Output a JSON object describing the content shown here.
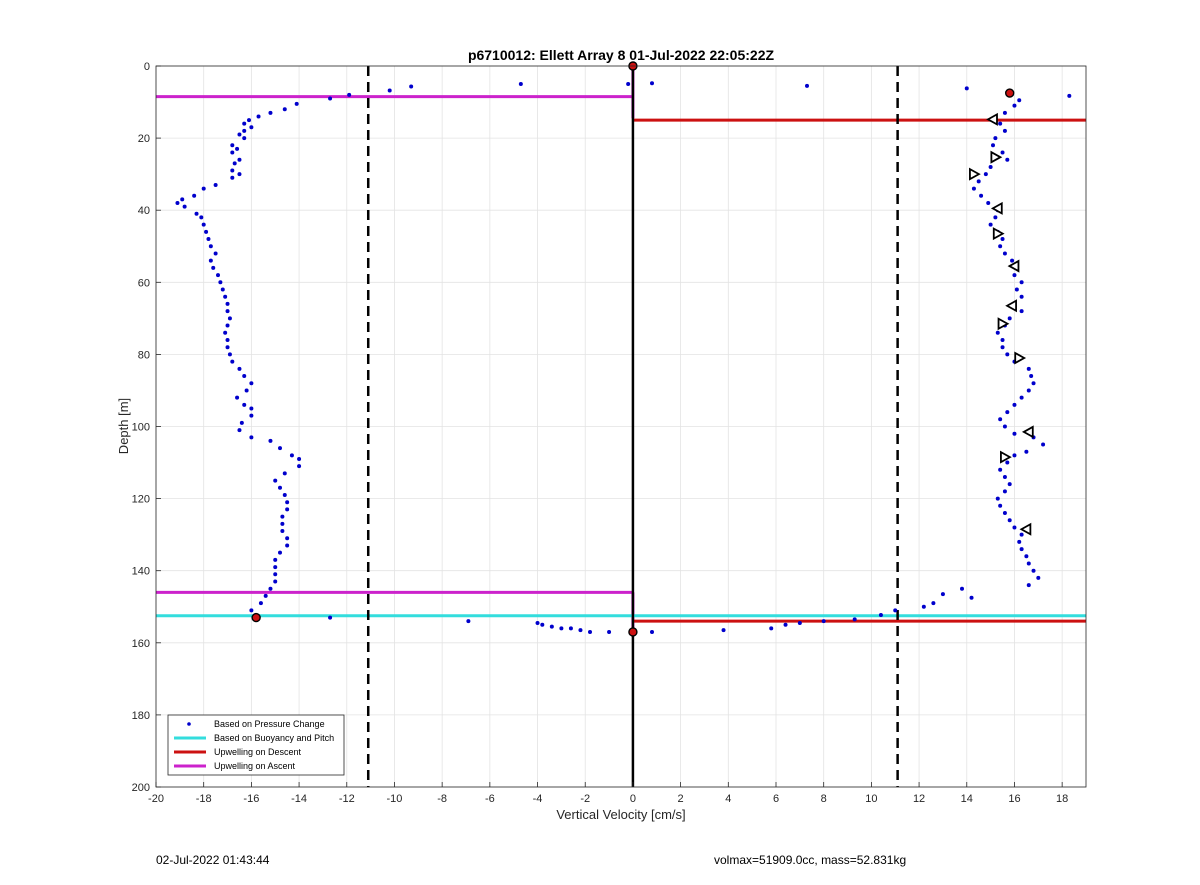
{
  "chart_data": {
    "type": "scatter",
    "title": "p6710012: Ellett Array 8 01-Jul-2022 22:05:22Z",
    "xlabel": "Vertical Velocity [cm/s]",
    "ylabel": "Depth [m]",
    "xlim": [
      -20,
      19
    ],
    "ylim": [
      0,
      200
    ],
    "y_reversed": true,
    "grid": true,
    "xticks": [
      -20,
      -18,
      -16,
      -14,
      -12,
      -10,
      -8,
      -6,
      -4,
      -2,
      0,
      2,
      4,
      6,
      8,
      10,
      12,
      14,
      16,
      18
    ],
    "yticks": [
      0,
      20,
      40,
      60,
      80,
      100,
      120,
      140,
      160,
      180,
      200
    ],
    "legend_position": "bottom-left",
    "legend": [
      {
        "label": "Based on Pressure Change",
        "color": "#0000cc",
        "marker": "dot"
      },
      {
        "label": "Based on Buoyancy and Pitch",
        "color": "#33dddd",
        "marker": "line"
      },
      {
        "label": "Upwelling on Descent",
        "color": "#cc1111",
        "marker": "line"
      },
      {
        "label": "Upwelling on Ascent",
        "color": "#cc22cc",
        "marker": "line"
      }
    ],
    "vertical_lines": [
      {
        "x": -11.1,
        "style": "dashed",
        "color": "#000000"
      },
      {
        "x": 11.1,
        "style": "dashed",
        "color": "#000000"
      },
      {
        "x": 0,
        "style": "solid",
        "color": "#000000"
      }
    ],
    "upwelling_ascent_segments": [
      {
        "x": [
          -20,
          0
        ],
        "y": 8.5
      },
      {
        "x": [
          -20,
          0
        ],
        "y": 146
      },
      {
        "x": [
          0,
          0
        ],
        "y_range": [
          0,
          14.5
        ]
      },
      {
        "x": [
          0,
          0
        ],
        "y_range": [
          146,
          156.5
        ]
      }
    ],
    "upwelling_descent_segments": [
      {
        "x": [
          0,
          19
        ],
        "y": 15
      },
      {
        "x": [
          0,
          19
        ],
        "y": 154
      }
    ],
    "buoyancy_pitch_segments": [
      {
        "x": [
          -20,
          19
        ],
        "y": 152.5
      }
    ],
    "series": [
      {
        "name": "Based on Pressure Change",
        "points": [
          [
            -15.8,
            153
          ],
          [
            -16.0,
            151
          ],
          [
            -15.6,
            149
          ],
          [
            -15.4,
            147
          ],
          [
            -15.2,
            145
          ],
          [
            -15.0,
            143
          ],
          [
            -15.0,
            141
          ],
          [
            -15.0,
            139
          ],
          [
            -15.0,
            137
          ],
          [
            -14.8,
            135
          ],
          [
            -14.5,
            133
          ],
          [
            -14.5,
            131
          ],
          [
            -14.7,
            129
          ],
          [
            -14.7,
            127
          ],
          [
            -14.7,
            125
          ],
          [
            -14.5,
            123
          ],
          [
            -14.5,
            121
          ],
          [
            -14.6,
            119
          ],
          [
            -14.8,
            117
          ],
          [
            -15.0,
            115
          ],
          [
            -14.6,
            113
          ],
          [
            -14.0,
            111
          ],
          [
            -14.0,
            109
          ],
          [
            -14.3,
            108
          ],
          [
            -14.8,
            106
          ],
          [
            -15.2,
            104
          ],
          [
            -16.0,
            103
          ],
          [
            -16.5,
            101
          ],
          [
            -16.4,
            99
          ],
          [
            -16.0,
            97
          ],
          [
            -16.0,
            95
          ],
          [
            -16.3,
            94
          ],
          [
            -16.6,
            92
          ],
          [
            -16.2,
            90
          ],
          [
            -16.0,
            88
          ],
          [
            -16.3,
            86
          ],
          [
            -16.5,
            84
          ],
          [
            -16.8,
            82
          ],
          [
            -16.9,
            80
          ],
          [
            -17.0,
            78
          ],
          [
            -17.0,
            76
          ],
          [
            -17.1,
            74
          ],
          [
            -17.0,
            72
          ],
          [
            -16.9,
            70
          ],
          [
            -17.0,
            68
          ],
          [
            -17.0,
            66
          ],
          [
            -17.1,
            64
          ],
          [
            -17.2,
            62
          ],
          [
            -17.3,
            60
          ],
          [
            -17.4,
            58
          ],
          [
            -17.6,
            56
          ],
          [
            -17.7,
            54
          ],
          [
            -17.5,
            52
          ],
          [
            -17.7,
            50
          ],
          [
            -17.8,
            48
          ],
          [
            -17.9,
            46
          ],
          [
            -18.0,
            44
          ],
          [
            -18.1,
            42
          ],
          [
            -18.3,
            41
          ],
          [
            -18.8,
            39
          ],
          [
            -19.1,
            38
          ],
          [
            -18.9,
            37
          ],
          [
            -18.4,
            36
          ],
          [
            -18.0,
            34
          ],
          [
            -17.5,
            33
          ],
          [
            -16.8,
            31
          ],
          [
            -16.5,
            30
          ],
          [
            -16.8,
            29
          ],
          [
            -16.7,
            27
          ],
          [
            -16.5,
            26
          ],
          [
            -16.8,
            24
          ],
          [
            -16.6,
            23
          ],
          [
            -16.8,
            22
          ],
          [
            -16.3,
            20
          ],
          [
            -16.5,
            19
          ],
          [
            -16.3,
            18
          ],
          [
            -16.0,
            17
          ],
          [
            -16.3,
            16
          ],
          [
            -16.1,
            15
          ],
          [
            -15.7,
            14
          ],
          [
            -15.2,
            13
          ],
          [
            -14.6,
            12
          ],
          [
            -14.1,
            10.5
          ],
          [
            -12.7,
            9
          ],
          [
            -11.9,
            8
          ],
          [
            -10.2,
            6.8
          ],
          [
            -9.3,
            5.7
          ],
          [
            -4.7,
            5
          ],
          [
            -0.2,
            5
          ],
          [
            0.8,
            4.8
          ],
          [
            7.3,
            5.5
          ],
          [
            14.0,
            6.2
          ],
          [
            18.3,
            8.3
          ],
          [
            15.9,
            7.8
          ],
          [
            16.2,
            9.5
          ],
          [
            16.0,
            11
          ],
          [
            15.6,
            13
          ],
          [
            15.2,
            14.5
          ],
          [
            15.4,
            16
          ],
          [
            15.6,
            18
          ],
          [
            15.2,
            20
          ],
          [
            15.1,
            22
          ],
          [
            15.5,
            24
          ],
          [
            15.7,
            26
          ],
          [
            15.0,
            28
          ],
          [
            14.8,
            30
          ],
          [
            14.5,
            32
          ],
          [
            14.3,
            34
          ],
          [
            14.6,
            36
          ],
          [
            14.9,
            38
          ],
          [
            15.3,
            40
          ],
          [
            15.2,
            42
          ],
          [
            15.0,
            44
          ],
          [
            15.3,
            46
          ],
          [
            15.5,
            48
          ],
          [
            15.4,
            50
          ],
          [
            15.6,
            52
          ],
          [
            15.9,
            54
          ],
          [
            16.1,
            56
          ],
          [
            16.0,
            58
          ],
          [
            16.3,
            60
          ],
          [
            16.1,
            62
          ],
          [
            16.3,
            64
          ],
          [
            16.0,
            66
          ],
          [
            16.3,
            68
          ],
          [
            15.8,
            70
          ],
          [
            15.6,
            72
          ],
          [
            15.3,
            74
          ],
          [
            15.5,
            76
          ],
          [
            15.5,
            78
          ],
          [
            15.7,
            80
          ],
          [
            16.0,
            82
          ],
          [
            16.6,
            84
          ],
          [
            16.7,
            86
          ],
          [
            16.8,
            88
          ],
          [
            16.6,
            90
          ],
          [
            16.3,
            92
          ],
          [
            16.0,
            94
          ],
          [
            15.7,
            96
          ],
          [
            15.4,
            98
          ],
          [
            15.6,
            100
          ],
          [
            16.0,
            102
          ],
          [
            16.8,
            103
          ],
          [
            17.2,
            105
          ],
          [
            16.5,
            107
          ],
          [
            16.0,
            108
          ],
          [
            15.7,
            110
          ],
          [
            15.4,
            112
          ],
          [
            15.6,
            114
          ],
          [
            15.8,
            116
          ],
          [
            15.6,
            118
          ],
          [
            15.3,
            120
          ],
          [
            15.4,
            122
          ],
          [
            15.6,
            124
          ],
          [
            15.8,
            126
          ],
          [
            16.0,
            128
          ],
          [
            16.3,
            130
          ],
          [
            16.2,
            132
          ],
          [
            16.3,
            134
          ],
          [
            16.5,
            136
          ],
          [
            16.6,
            138
          ],
          [
            16.8,
            140
          ],
          [
            17.0,
            142
          ],
          [
            16.6,
            144
          ],
          [
            13.8,
            145
          ],
          [
            14.2,
            147.5
          ],
          [
            13.0,
            146.5
          ],
          [
            12.6,
            149
          ],
          [
            12.2,
            150
          ],
          [
            11.0,
            151
          ],
          [
            10.4,
            152.3
          ],
          [
            9.3,
            153.5
          ],
          [
            8.0,
            154
          ],
          [
            7.0,
            154.5
          ],
          [
            6.4,
            155
          ],
          [
            5.8,
            156
          ],
          [
            3.8,
            156.5
          ],
          [
            0.8,
            157
          ],
          [
            0,
            157
          ],
          [
            -1.0,
            157
          ],
          [
            -1.8,
            157
          ],
          [
            -2.2,
            156.5
          ],
          [
            -2.6,
            156
          ],
          [
            -3.0,
            156
          ],
          [
            -3.4,
            155.5
          ],
          [
            -3.8,
            155
          ],
          [
            -4.0,
            154.5
          ],
          [
            -6.9,
            154
          ],
          [
            -12.7,
            153
          ]
        ]
      }
    ],
    "markers": [
      {
        "type": "star",
        "points": [
          [
            0,
            0
          ],
          [
            15.8,
            7.5
          ],
          [
            -15.8,
            153
          ],
          [
            0,
            157
          ]
        ]
      },
      {
        "type": "triangle-left",
        "points": [
          [
            15.1,
            14.8
          ],
          [
            15.3,
            39.5
          ],
          [
            16.0,
            55.5
          ],
          [
            15.9,
            66.5
          ],
          [
            16.6,
            101.5
          ],
          [
            16.5,
            128.5
          ]
        ]
      },
      {
        "type": "triangle-right",
        "points": [
          [
            15.2,
            25.3
          ],
          [
            14.3,
            30
          ],
          [
            15.3,
            46.5
          ],
          [
            15.5,
            71.5
          ],
          [
            16.2,
            81
          ],
          [
            15.6,
            108.5
          ]
        ]
      }
    ]
  },
  "footer": {
    "timestamp": "02-Jul-2022 01:43:44",
    "summary": "volmax=51909.0cc, mass=52.831kg"
  }
}
